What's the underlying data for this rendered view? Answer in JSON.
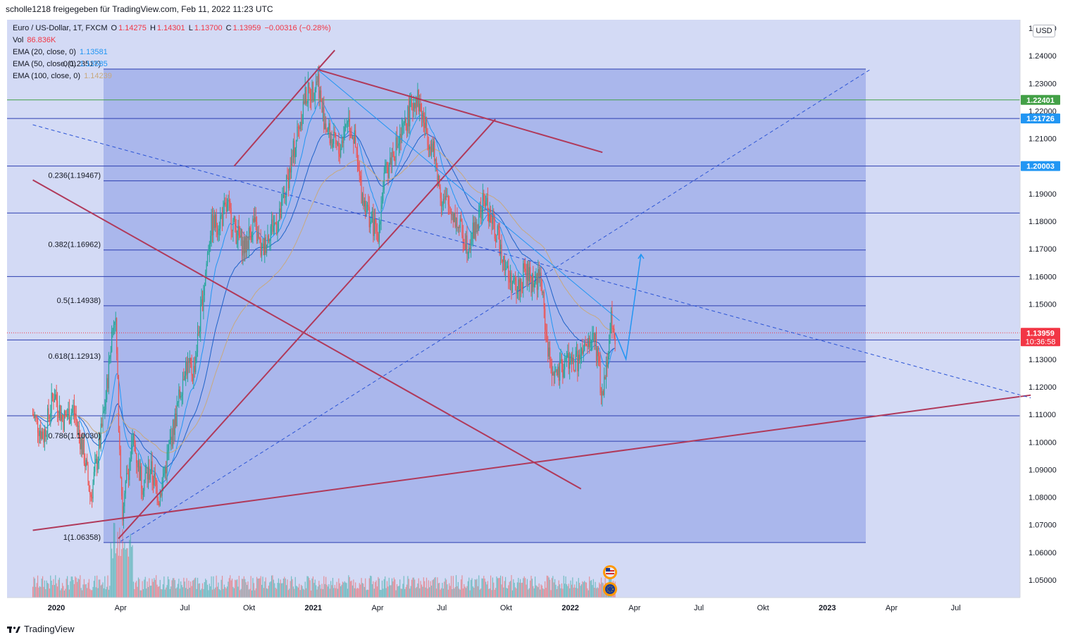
{
  "header": {
    "share_text": "scholle1218 freigegeben für TradingView.com, Feb 11, 2022 11:23 UTC"
  },
  "legend": {
    "symbol": "Euro / US-Dollar, 1T, FXCM",
    "ohlc": {
      "o_label": "O",
      "o": "1.14275",
      "h_label": "H",
      "h": "1.14301",
      "l_label": "L",
      "l": "1.13700",
      "c_label": "C",
      "c": "1.13959",
      "change": "−0.00316 (−0.28%)"
    },
    "vol_label": "Vol",
    "vol": "86.836K",
    "ema20_label": "EMA (20, close, 0)",
    "ema20": "1.13581",
    "ema50_label": "EMA (50, close, 0)",
    "ema50": "1.13585",
    "ema100_label": "EMA (100, close, 0)",
    "ema100": "1.14239"
  },
  "colors": {
    "up": "#26a69a",
    "down": "#ef5350",
    "ema20": "#2196f3",
    "ema50": "#2196f3",
    "ema100": "#c8a97e",
    "fib_zone": "#3f51b5",
    "trend": "#b0395a",
    "accent_green": "#43a047",
    "accent_blue": "#2196f3",
    "price_red": "#f23645"
  },
  "currency_button": "USD",
  "fib_levels": [
    {
      "label": "0(1.23517)",
      "value": 1.23517
    },
    {
      "label": "0.236(1.19467)",
      "value": 1.19467
    },
    {
      "label": "0.382(1.16962)",
      "value": 1.16962
    },
    {
      "label": "0.5(1.14938)",
      "value": 1.14938
    },
    {
      "label": "0.618(1.12913)",
      "value": 1.12913
    },
    {
      "label": "0.786(1.10030)",
      "value": 1.1003
    },
    {
      "label": "1(1.06358)",
      "value": 1.06358
    }
  ],
  "horizontal_levels": [
    1.22401,
    1.21726,
    1.20003,
    1.183,
    1.16,
    1.137,
    1.1095
  ],
  "price_tags": [
    {
      "text": "1.22401",
      "value": 1.22401,
      "color": "#43a047"
    },
    {
      "text": "1.21726",
      "value": 1.21726,
      "color": "#2196f3"
    },
    {
      "text": "1.20003",
      "value": 1.20003,
      "color": "#2196f3"
    },
    {
      "text": "1.13959",
      "value": 1.13959,
      "color": "#f23645",
      "sub": "10:36:58"
    }
  ],
  "chart_data": {
    "type": "candlestick",
    "ylim": [
      1.045,
      1.255
    ],
    "y_ticks": [
      "1.25000",
      "1.24000",
      "1.23000",
      "1.22000",
      "1.21000",
      "1.20000",
      "1.19000",
      "1.18000",
      "1.17000",
      "1.16000",
      "1.15000",
      "1.14000",
      "1.13000",
      "1.12000",
      "1.11000",
      "1.10000",
      "1.09000",
      "1.08000",
      "1.07000",
      "1.06000",
      "1.05000"
    ],
    "x_ticks": [
      {
        "label": "2020",
        "bold": true
      },
      {
        "label": "Apr",
        "bold": false
      },
      {
        "label": "Jul",
        "bold": false
      },
      {
        "label": "Okt",
        "bold": false
      },
      {
        "label": "2021",
        "bold": true
      },
      {
        "label": "Apr",
        "bold": false
      },
      {
        "label": "Jul",
        "bold": false
      },
      {
        "label": "Okt",
        "bold": false
      },
      {
        "label": "2022",
        "bold": true
      },
      {
        "label": "Apr",
        "bold": false
      },
      {
        "label": "Jul",
        "bold": false
      },
      {
        "label": "Okt",
        "bold": false
      },
      {
        "label": "2023",
        "bold": true
      },
      {
        "label": "Apr",
        "bold": false
      },
      {
        "label": "Jul",
        "bold": false
      }
    ],
    "x_tick_months": [
      0,
      3,
      6,
      9,
      12,
      15,
      18,
      21,
      24,
      27,
      30,
      33,
      36,
      39,
      42
    ],
    "price_path": [
      [
        -1.1,
        1.11
      ],
      [
        -0.6,
        1.102
      ],
      [
        -0.1,
        1.118
      ],
      [
        0.3,
        1.108
      ],
      [
        0.8,
        1.112
      ],
      [
        1.3,
        1.095
      ],
      [
        1.6,
        1.08
      ],
      [
        2.0,
        1.098
      ],
      [
        2.3,
        1.115
      ],
      [
        2.6,
        1.14
      ],
      [
        2.75,
        1.148
      ],
      [
        2.9,
        1.11
      ],
      [
        3.1,
        1.072
      ],
      [
        3.3,
        1.088
      ],
      [
        3.6,
        1.1
      ],
      [
        4.0,
        1.085
      ],
      [
        4.4,
        1.09
      ],
      [
        4.8,
        1.08
      ],
      [
        5.2,
        1.095
      ],
      [
        5.6,
        1.11
      ],
      [
        6.0,
        1.128
      ],
      [
        6.4,
        1.125
      ],
      [
        6.8,
        1.15
      ],
      [
        7.2,
        1.178
      ],
      [
        7.6,
        1.18
      ],
      [
        8.0,
        1.185
      ],
      [
        8.4,
        1.176
      ],
      [
        8.8,
        1.17
      ],
      [
        9.2,
        1.18
      ],
      [
        9.6,
        1.168
      ],
      [
        10.0,
        1.178
      ],
      [
        10.4,
        1.18
      ],
      [
        10.8,
        1.195
      ],
      [
        11.2,
        1.21
      ],
      [
        11.6,
        1.225
      ],
      [
        12.0,
        1.228
      ],
      [
        12.2,
        1.233
      ],
      [
        12.4,
        1.22
      ],
      [
        12.8,
        1.21
      ],
      [
        13.2,
        1.205
      ],
      [
        13.6,
        1.218
      ],
      [
        13.9,
        1.21
      ],
      [
        14.2,
        1.192
      ],
      [
        14.6,
        1.182
      ],
      [
        15.0,
        1.175
      ],
      [
        15.3,
        1.195
      ],
      [
        15.7,
        1.205
      ],
      [
        16.1,
        1.21
      ],
      [
        16.5,
        1.22
      ],
      [
        16.8,
        1.226
      ],
      [
        17.2,
        1.215
      ],
      [
        17.6,
        1.205
      ],
      [
        18.0,
        1.188
      ],
      [
        18.4,
        1.185
      ],
      [
        18.8,
        1.178
      ],
      [
        19.2,
        1.172
      ],
      [
        19.6,
        1.178
      ],
      [
        20.0,
        1.188
      ],
      [
        20.4,
        1.178
      ],
      [
        20.8,
        1.17
      ],
      [
        21.1,
        1.16
      ],
      [
        21.5,
        1.155
      ],
      [
        21.9,
        1.162
      ],
      [
        22.2,
        1.158
      ],
      [
        22.6,
        1.16
      ],
      [
        23.0,
        1.13
      ],
      [
        23.4,
        1.123
      ],
      [
        23.8,
        1.13
      ],
      [
        24.2,
        1.128
      ],
      [
        24.6,
        1.132
      ],
      [
        24.9,
        1.135
      ],
      [
        25.1,
        1.14
      ],
      [
        25.3,
        1.128
      ],
      [
        25.5,
        1.115
      ],
      [
        25.7,
        1.13
      ],
      [
        25.9,
        1.145
      ],
      [
        26.1,
        1.1396
      ]
    ],
    "volume_note": "volume histogram at bottom",
    "projection": [
      [
        26.1,
        1.1396
      ],
      [
        26.6,
        1.13
      ],
      [
        27.3,
        1.168
      ]
    ],
    "trend_lines": [
      {
        "from": [
          -1.1,
          1.195
        ],
        "to": [
          24.5,
          1.083
        ],
        "style": "solid"
      },
      {
        "from": [
          -1.1,
          1.068
        ],
        "to": [
          45.5,
          1.117
        ],
        "style": "solid"
      },
      {
        "from": [
          2.9,
          1.065
        ],
        "to": [
          20.5,
          1.217
        ],
        "style": "solid"
      },
      {
        "from": [
          8.3,
          1.2
        ],
        "to": [
          12.2,
          1.235
        ],
        "to2": [
          13.0,
          1.242
        ],
        "style": "solid"
      },
      {
        "from": [
          12.2,
          1.235
        ],
        "to": [
          25.5,
          1.205
        ],
        "style": "solid"
      },
      {
        "from": [
          -1.1,
          1.215
        ],
        "to": [
          45.5,
          1.116
        ],
        "style": "dashed"
      },
      {
        "from": [
          3.0,
          1.064
        ],
        "to": [
          38.0,
          1.235
        ],
        "style": "dashed"
      }
    ]
  }
}
